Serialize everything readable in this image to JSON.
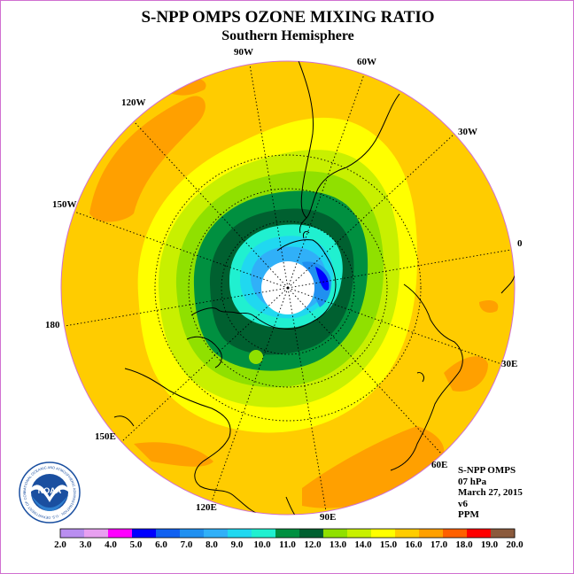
{
  "title": "S-NPP OMPS OZONE MIXING RATIO",
  "subtitle": "Southern Hemisphere",
  "longitude_labels": [
    "90W",
    "60W",
    "30W",
    "0",
    "30E",
    "60E",
    "90E",
    "120E",
    "150E",
    "180",
    "150W",
    "120W"
  ],
  "info": {
    "instrument": "S-NPP OMPS",
    "level": "07 hPa",
    "date": "March 27, 2015",
    "version": "v6",
    "units": "PPM"
  },
  "colorbar": {
    "ticks": [
      "2.0",
      "3.0",
      "4.0",
      "5.0",
      "6.0",
      "7.0",
      "8.0",
      "9.0",
      "10.0",
      "11.0",
      "12.0",
      "13.0",
      "14.0",
      "15.0",
      "16.0",
      "17.0",
      "18.0",
      "19.0",
      "20.0"
    ],
    "colors": [
      "#b98ef0",
      "#e8a0f0",
      "#ff00ff",
      "#0000ff",
      "#1060f0",
      "#2090f0",
      "#30b0f8",
      "#20d8f0",
      "#20f0d0",
      "#009040",
      "#006030",
      "#90e000",
      "#c8f000",
      "#ffff00",
      "#ffcc00",
      "#ffa000",
      "#ff6000",
      "#ff0000",
      "#8b5a3c"
    ]
  },
  "logo": {
    "text": "NOAA",
    "ring_text": "NATIONAL OCEANIC AND ATMOSPHERIC ADMINISTRATION · U.S. DEPARTMENT OF COMMERCE"
  },
  "colors": {
    "background_field": "#ffcc00",
    "frame": "#d070d0"
  }
}
